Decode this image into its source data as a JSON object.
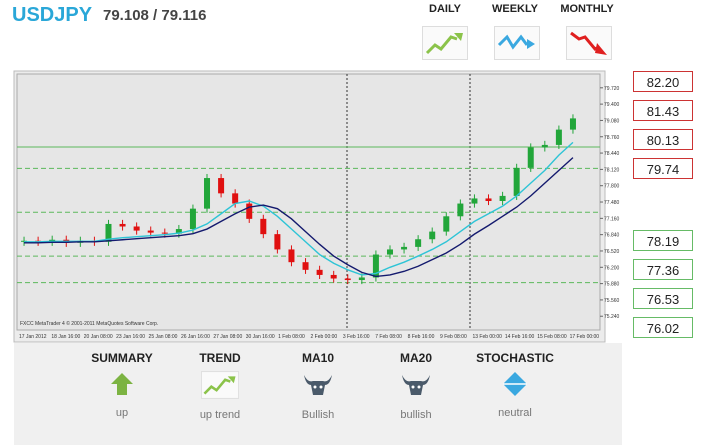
{
  "header": {
    "symbol": "USDJPY",
    "quote": "79.108 / 79.116"
  },
  "periods": [
    "DAILY",
    "WEEKLY",
    "MONTHLY"
  ],
  "levels": {
    "resistance": [
      "82.20",
      "81.43",
      "80.13",
      "79.74"
    ],
    "support": [
      "78.19",
      "77.36",
      "76.53",
      "76.02"
    ]
  },
  "indicators": [
    {
      "name": "SUMMARY",
      "status": "up"
    },
    {
      "name": "TREND",
      "status": "up trend"
    },
    {
      "name": "MA10",
      "status": "Bullish"
    },
    {
      "name": "MA20",
      "status": "bullish"
    },
    {
      "name": "STOCHASTIC",
      "status": "neutral"
    }
  ],
  "chart_data": {
    "type": "candlestick",
    "footer": "FXCC  MetaTrader 4  © 2001-2011 MetaQuotes Software Corp.",
    "x_labels": [
      "17 Jan 2012",
      "18 Jan 16:00",
      "20 Jan 08:00",
      "23 Jan 16:00",
      "25 Jan 08:00",
      "26 Jan 16:00",
      "27 Jan 08:00",
      "30 Jan 16:00",
      "1 Feb 08:00",
      "2 Feb 00:00",
      "3 Feb 16:00",
      "7 Feb 08:00",
      "8 Feb 16:00",
      "9 Feb 08:00",
      "13 Feb 00:00",
      "14 Feb 16:00",
      "15 Feb 08:00",
      "17 Feb 00:00"
    ],
    "ylim": [
      74.97,
      80.03
    ],
    "yticks": [
      {
        "value": 79.72,
        "label": "79.720"
      },
      {
        "value": 79.4,
        "label": "79.400"
      },
      {
        "value": 79.08,
        "label": "79.080"
      },
      {
        "value": 78.76,
        "label": "78.760"
      },
      {
        "value": 78.44,
        "label": "78.440"
      },
      {
        "value": 78.12,
        "label": "78.120"
      },
      {
        "value": 77.8,
        "label": "77.800"
      },
      {
        "value": 77.48,
        "label": "77.480"
      },
      {
        "value": 77.16,
        "label": "77.160"
      },
      {
        "value": 76.84,
        "label": "76.840"
      },
      {
        "value": 76.52,
        "label": "76.520"
      },
      {
        "value": 76.2,
        "label": "76.200"
      },
      {
        "value": 75.88,
        "label": "75.880"
      },
      {
        "value": 75.56,
        "label": "75.560"
      },
      {
        "value": 75.24,
        "label": "75.240"
      }
    ],
    "hlines": [
      78.56,
      78.14,
      77.28,
      76.42,
      75.9
    ],
    "hline_color": "#5cb85c",
    "up_color": "#22a63a",
    "down_color": "#e01010",
    "open": [
      76.7,
      76.72,
      76.7,
      76.74,
      76.68,
      76.72,
      76.7,
      77.05,
      77.0,
      76.92,
      76.88,
      76.86,
      76.95,
      77.35,
      77.95,
      77.65,
      77.45,
      77.15,
      76.85,
      76.55,
      76.3,
      76.15,
      76.05,
      75.98,
      75.95,
      76.0,
      76.45,
      76.55,
      76.6,
      76.75,
      76.9,
      77.2,
      77.45,
      77.55,
      77.5,
      77.6,
      78.15,
      78.55,
      78.6,
      78.9
    ],
    "high": [
      76.8,
      76.8,
      76.82,
      76.82,
      76.8,
      76.8,
      77.13,
      77.13,
      77.08,
      77.0,
      76.96,
      77.03,
      77.43,
      78.03,
      78.03,
      77.73,
      77.53,
      77.23,
      76.93,
      76.63,
      76.38,
      76.23,
      76.13,
      76.06,
      76.08,
      76.53,
      76.63,
      76.68,
      76.83,
      76.98,
      77.28,
      77.53,
      77.63,
      77.63,
      77.68,
      78.23,
      78.63,
      78.68,
      78.98,
      79.2
    ],
    "low": [
      76.62,
      76.62,
      76.62,
      76.6,
      76.6,
      76.62,
      76.62,
      76.92,
      76.84,
      76.8,
      76.78,
      76.78,
      76.87,
      77.27,
      77.57,
      77.37,
      77.07,
      76.77,
      76.47,
      76.22,
      76.07,
      75.97,
      75.9,
      75.87,
      75.87,
      75.92,
      76.37,
      76.47,
      76.52,
      76.67,
      76.82,
      77.12,
      77.37,
      77.42,
      77.42,
      77.52,
      78.07,
      78.47,
      78.52,
      78.82
    ],
    "close": [
      76.72,
      76.7,
      76.74,
      76.68,
      76.72,
      76.7,
      77.05,
      77.0,
      76.92,
      76.88,
      76.86,
      76.95,
      77.35,
      77.95,
      77.65,
      77.45,
      77.15,
      76.85,
      76.55,
      76.3,
      76.15,
      76.05,
      75.98,
      75.95,
      76.0,
      76.45,
      76.55,
      76.6,
      76.75,
      76.9,
      77.2,
      77.45,
      77.55,
      77.5,
      77.6,
      78.15,
      78.55,
      78.6,
      78.9,
      79.12
    ],
    "series": [
      {
        "color": "#2ec4d6",
        "values": [
          76.7,
          76.7,
          76.71,
          76.71,
          76.71,
          76.71,
          76.75,
          76.78,
          76.8,
          76.82,
          76.84,
          76.87,
          76.93,
          77.05,
          77.25,
          77.45,
          77.5,
          77.4,
          77.2,
          76.95,
          76.7,
          76.45,
          76.28,
          76.15,
          76.05,
          76.08,
          76.2,
          76.3,
          76.42,
          76.55,
          76.7,
          76.9,
          77.1,
          77.25,
          77.4,
          77.6,
          77.85,
          78.1,
          78.4,
          78.65
        ]
      },
      {
        "color": "#141a6e",
        "values": [
          76.68,
          76.68,
          76.69,
          76.69,
          76.7,
          76.7,
          76.72,
          76.74,
          76.76,
          76.78,
          76.8,
          76.82,
          76.86,
          76.95,
          77.1,
          77.25,
          77.38,
          77.42,
          77.35,
          77.15,
          76.9,
          76.65,
          76.42,
          76.25,
          76.1,
          76.02,
          76.05,
          76.12,
          76.22,
          76.35,
          76.48,
          76.65,
          76.85,
          77.02,
          77.2,
          77.38,
          77.6,
          77.85,
          78.1,
          78.35
        ]
      }
    ]
  }
}
